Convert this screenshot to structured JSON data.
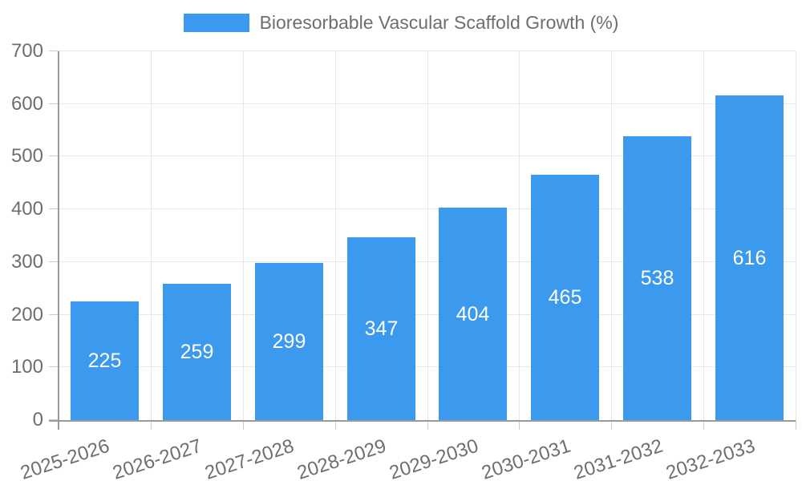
{
  "legend": {
    "label": "Bioresorbable Vascular Scaffold Growth (%)"
  },
  "chart_data": {
    "type": "bar",
    "title": "Bioresorbable Vascular Scaffold Growth (%)",
    "categories": [
      "2025-2026",
      "2026-2027",
      "2027-2028",
      "2028-2029",
      "2029-2030",
      "2030-2031",
      "2031-2032",
      "2032-2033"
    ],
    "values": [
      225,
      259,
      299,
      347,
      404,
      465,
      538,
      616
    ],
    "xlabel": "",
    "ylabel": "",
    "ylim": [
      0,
      700
    ],
    "ytick_step": 100,
    "ytick_labels": [
      "0",
      "100",
      "200",
      "300",
      "400",
      "500",
      "600",
      "700"
    ],
    "grid": true,
    "legend_position": "top-center",
    "value_labels": "inside-center"
  },
  "colors": {
    "bar": "#3b99ee",
    "grid": "#e7e7e7",
    "axis": "#9a9a9a",
    "tick": "#cccccc",
    "text": "#6e6e6e",
    "value-text": "#ffffff",
    "background": "#ffffff"
  }
}
